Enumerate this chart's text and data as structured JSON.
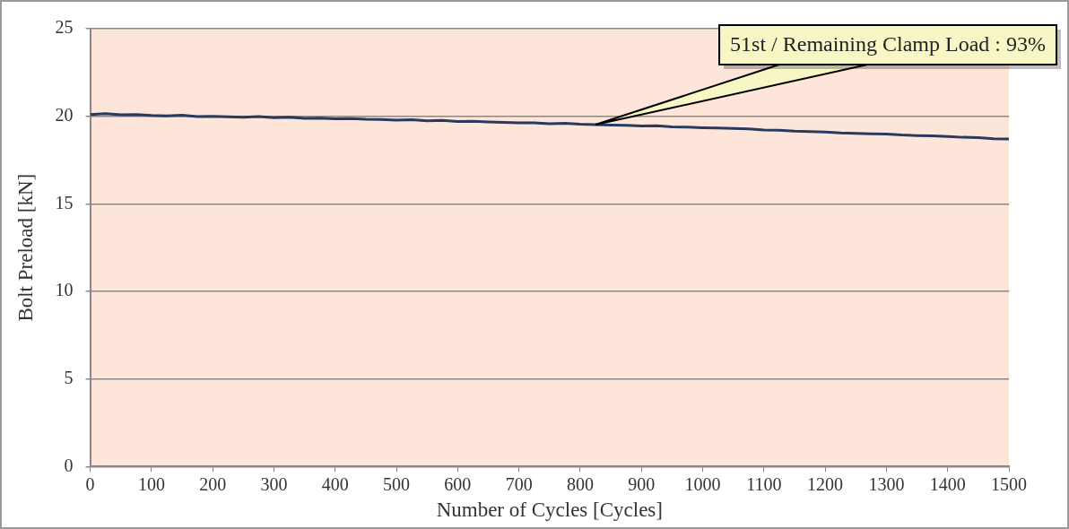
{
  "chart_data": {
    "type": "line",
    "xlabel": "Number of Cycles [Cycles]",
    "ylabel": "Bolt Preload [kN]",
    "x": [
      0,
      25,
      50,
      75,
      100,
      125,
      150,
      175,
      200,
      225,
      250,
      275,
      300,
      325,
      350,
      375,
      400,
      425,
      450,
      475,
      500,
      525,
      550,
      575,
      600,
      625,
      650,
      675,
      700,
      725,
      750,
      775,
      800,
      825,
      850,
      875,
      900,
      925,
      950,
      975,
      1000,
      1025,
      1050,
      1075,
      1100,
      1125,
      1150,
      1175,
      1200,
      1225,
      1250,
      1275,
      1300,
      1325,
      1350,
      1375,
      1400,
      1425,
      1450,
      1475,
      1500
    ],
    "series": [
      {
        "color": "#283a5e",
        "values": [
          20.1,
          20.15,
          20.08,
          20.1,
          20.05,
          20.02,
          20.06,
          19.98,
          20.0,
          19.97,
          19.95,
          19.98,
          19.92,
          19.94,
          19.88,
          19.9,
          19.85,
          19.87,
          19.83,
          19.82,
          19.78,
          19.8,
          19.74,
          19.76,
          19.7,
          19.72,
          19.68,
          19.65,
          19.62,
          19.63,
          19.58,
          19.6,
          19.55,
          19.52,
          19.5,
          19.48,
          19.45,
          19.46,
          19.4,
          19.38,
          19.35,
          19.33,
          19.3,
          19.28,
          19.22,
          19.2,
          19.15,
          19.13,
          19.1,
          19.05,
          19.03,
          19.0,
          18.98,
          18.93,
          18.9,
          18.88,
          18.85,
          18.8,
          18.78,
          18.72,
          18.7
        ]
      }
    ],
    "xlim": [
      0,
      1500
    ],
    "xticks": [
      0,
      100,
      200,
      300,
      400,
      500,
      600,
      700,
      800,
      900,
      1000,
      1100,
      1200,
      1300,
      1400,
      1500
    ],
    "ylim": [
      0,
      25
    ],
    "yticks": [
      0,
      5,
      10,
      15,
      20,
      25
    ],
    "grid": "y",
    "legend": false,
    "marker": "none",
    "line_style": "solid",
    "annotations": [
      {
        "text": "51st / Remaining Clamp Load : 93%",
        "x": 825,
        "y": 19.52
      }
    ]
  }
}
